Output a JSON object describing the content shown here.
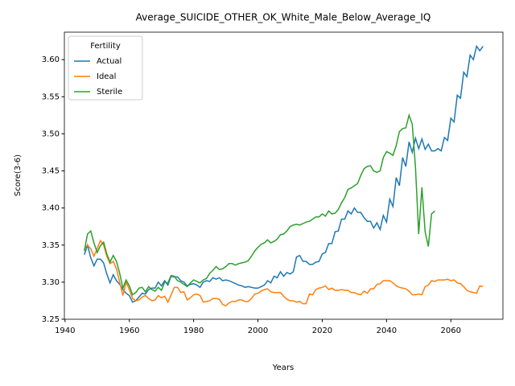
{
  "chart_data": {
    "type": "line",
    "title": "Average_SUICIDE_OTHER_OK_White_Male_Below_Average_IQ",
    "xlabel": "Years",
    "ylabel": "Score(3-6)",
    "legend_title": "Fertility",
    "legend": "upper left",
    "x": [
      1946,
      1947,
      1948,
      1949,
      1950,
      1951,
      1952,
      1953,
      1954,
      1955,
      1956,
      1957,
      1958,
      1959,
      1960,
      1961,
      1962,
      1963,
      1964,
      1965,
      1966,
      1967,
      1968,
      1969,
      1970,
      1971,
      1972,
      1973,
      1974,
      1975,
      1976,
      1977,
      1978,
      1979,
      1980,
      1981,
      1982,
      1983,
      1984,
      1985,
      1986,
      1987,
      1988,
      1989,
      1990,
      1991,
      1992,
      1993,
      1994,
      1995,
      1996,
      1997,
      1998,
      1999,
      2000,
      2001,
      2002,
      2003,
      2004,
      2005,
      2006,
      2007,
      2008,
      2009,
      2010,
      2011,
      2012,
      2013,
      2014,
      2015,
      2016,
      2017,
      2018,
      2019,
      2020,
      2021,
      2022,
      2023,
      2024,
      2025,
      2026,
      2027,
      2028,
      2029,
      2030,
      2031,
      2032,
      2033,
      2034,
      2035,
      2036,
      2037,
      2038,
      2039,
      2040,
      2041,
      2042,
      2043,
      2044,
      2045,
      2046,
      2047,
      2048,
      2049,
      2050,
      2051,
      2052,
      2053,
      2054,
      2055,
      2056,
      2057,
      2058,
      2059,
      2060,
      2061,
      2062,
      2063,
      2064,
      2065,
      2066,
      2067,
      2068,
      2069,
      2070
    ],
    "series": [
      {
        "name": "Actual",
        "color": "#1f77b4",
        "values": [
          3.337,
          3.35,
          3.333,
          3.322,
          3.331,
          3.331,
          3.326,
          3.311,
          3.299,
          3.31,
          3.302,
          3.297,
          3.29,
          3.285,
          3.282,
          3.273,
          3.275,
          3.28,
          3.285,
          3.284,
          3.29,
          3.292,
          3.292,
          3.3,
          3.295,
          3.302,
          3.296,
          3.308,
          3.307,
          3.307,
          3.302,
          3.3,
          3.295,
          3.297,
          3.298,
          3.296,
          3.293,
          3.3,
          3.302,
          3.301,
          3.306,
          3.304,
          3.306,
          3.302,
          3.303,
          3.302,
          3.3,
          3.298,
          3.296,
          3.295,
          3.293,
          3.294,
          3.293,
          3.292,
          3.292,
          3.294,
          3.296,
          3.302,
          3.299,
          3.308,
          3.306,
          3.314,
          3.308,
          3.313,
          3.311,
          3.314,
          3.334,
          3.336,
          3.328,
          3.328,
          3.324,
          3.324,
          3.327,
          3.328,
          3.338,
          3.34,
          3.352,
          3.352,
          3.368,
          3.369,
          3.385,
          3.385,
          3.396,
          3.392,
          3.4,
          3.394,
          3.394,
          3.387,
          3.382,
          3.382,
          3.373,
          3.38,
          3.371,
          3.39,
          3.381,
          3.412,
          3.402,
          3.441,
          3.43,
          3.468,
          3.456,
          3.489,
          3.475,
          3.494,
          3.48,
          3.493,
          3.479,
          3.486,
          3.477,
          3.477,
          3.48,
          3.477,
          3.495,
          3.491,
          3.521,
          3.516,
          3.552,
          3.548,
          3.583,
          3.577,
          3.606,
          3.6,
          3.618,
          3.612,
          3.618
        ]
      },
      {
        "name": "Ideal",
        "color": "#ff7f0e",
        "values": [
          3.345,
          3.35,
          3.345,
          3.335,
          3.345,
          3.356,
          3.35,
          3.335,
          3.325,
          3.328,
          3.318,
          3.3,
          3.282,
          3.3,
          3.29,
          3.278,
          3.275,
          3.276,
          3.28,
          3.282,
          3.278,
          3.275,
          3.276,
          3.282,
          3.279,
          3.281,
          3.273,
          3.283,
          3.293,
          3.293,
          3.286,
          3.287,
          3.276,
          3.279,
          3.283,
          3.284,
          3.282,
          3.273,
          3.274,
          3.275,
          3.278,
          3.278,
          3.277,
          3.27,
          3.268,
          3.272,
          3.274,
          3.274,
          3.276,
          3.276,
          3.274,
          3.274,
          3.278,
          3.284,
          3.285,
          3.288,
          3.29,
          3.291,
          3.287,
          3.286,
          3.286,
          3.286,
          3.281,
          3.277,
          3.275,
          3.275,
          3.273,
          3.274,
          3.271,
          3.271,
          3.284,
          3.283,
          3.29,
          3.292,
          3.293,
          3.295,
          3.29,
          3.292,
          3.289,
          3.289,
          3.29,
          3.289,
          3.289,
          3.286,
          3.286,
          3.284,
          3.283,
          3.288,
          3.285,
          3.291,
          3.291,
          3.297,
          3.298,
          3.302,
          3.302,
          3.302,
          3.299,
          3.295,
          3.293,
          3.292,
          3.291,
          3.288,
          3.283,
          3.283,
          3.284,
          3.283,
          3.294,
          3.296,
          3.302,
          3.301,
          3.303,
          3.303,
          3.303,
          3.304,
          3.302,
          3.303,
          3.299,
          3.298,
          3.294,
          3.289,
          3.287,
          3.286,
          3.285,
          3.295,
          3.294
        ]
      },
      {
        "name": "Sterile",
        "color": "#2ca02c",
        "values": [
          3.342,
          3.365,
          3.369,
          3.353,
          3.34,
          3.349,
          3.354,
          3.338,
          3.327,
          3.336,
          3.328,
          3.312,
          3.292,
          3.303,
          3.295,
          3.283,
          3.286,
          3.292,
          3.293,
          3.287,
          3.294,
          3.29,
          3.288,
          3.293,
          3.289,
          3.3,
          3.299,
          3.309,
          3.308,
          3.302,
          3.3,
          3.297,
          3.294,
          3.299,
          3.303,
          3.301,
          3.299,
          3.303,
          3.305,
          3.312,
          3.316,
          3.321,
          3.317,
          3.318,
          3.321,
          3.325,
          3.325,
          3.323,
          3.325,
          3.326,
          3.327,
          3.329,
          3.335,
          3.342,
          3.347,
          3.351,
          3.353,
          3.357,
          3.353,
          3.355,
          3.358,
          3.364,
          3.365,
          3.369,
          3.375,
          3.377,
          3.378,
          3.377,
          3.379,
          3.381,
          3.382,
          3.385,
          3.388,
          3.388,
          3.392,
          3.389,
          3.396,
          3.392,
          3.393,
          3.398,
          3.407,
          3.414,
          3.425,
          3.427,
          3.43,
          3.433,
          3.444,
          3.453,
          3.456,
          3.457,
          3.45,
          3.448,
          3.45,
          3.468,
          3.476,
          3.474,
          3.471,
          3.484,
          3.503,
          3.507,
          3.508,
          3.525,
          3.513,
          3.455,
          3.365,
          3.428,
          3.368,
          3.348,
          3.392,
          3.396,
          null,
          null,
          null,
          null,
          null,
          null,
          null,
          null,
          null,
          null,
          null,
          null,
          null,
          null,
          null
        ]
      }
    ],
    "xlim": [
      1939.8,
      2076.2
    ],
    "ylim": [
      3.25,
      3.637
    ],
    "xticks": [
      1940,
      1960,
      1980,
      2000,
      2020,
      2040,
      2060
    ],
    "yticks": [
      3.25,
      {
        "value": 3.3,
        "label": "3.30"
      },
      3.35,
      {
        "value": 3.4,
        "label": "3.40"
      },
      3.45,
      {
        "value": 3.5,
        "label": "3.50"
      },
      3.55,
      {
        "value": 3.6,
        "label": "3.60"
      }
    ],
    "grid": false
  }
}
